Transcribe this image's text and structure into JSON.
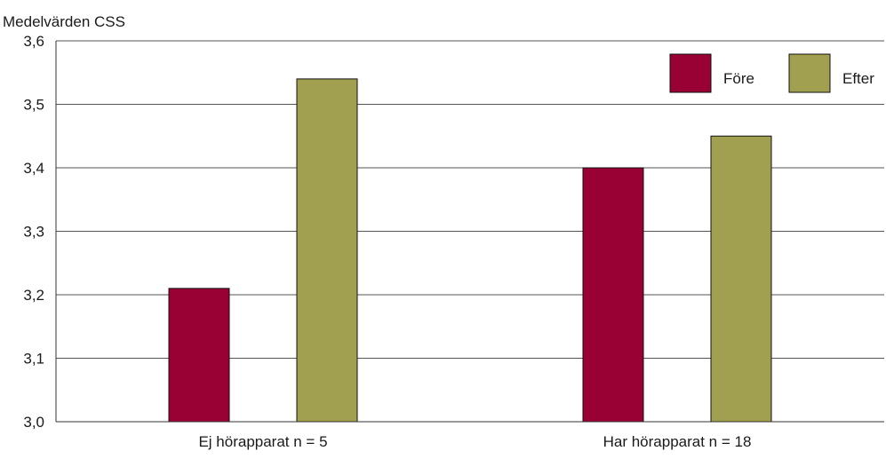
{
  "chart_data": {
    "type": "bar",
    "ylabel": "Medelvärden CSS",
    "categories": [
      "Ej hörapparat n = 5",
      "Har hörapparat n = 18"
    ],
    "series": [
      {
        "name": "Före",
        "values": [
          3.21,
          3.4
        ],
        "color": "#990033"
      },
      {
        "name": "Efter",
        "values": [
          3.54,
          3.45
        ],
        "color": "#a0a050"
      }
    ],
    "ylim": [
      3.0,
      3.6
    ],
    "yticks": [
      {
        "value": 3.0,
        "label": "3,0"
      },
      {
        "value": 3.1,
        "label": "3,1"
      },
      {
        "value": 3.2,
        "label": "3,2"
      },
      {
        "value": 3.3,
        "label": "3,3"
      },
      {
        "value": 3.4,
        "label": "3,4"
      },
      {
        "value": 3.5,
        "label": "3,5"
      },
      {
        "value": 3.6,
        "label": "3,6"
      }
    ],
    "grid": true,
    "legend_position": "top-right"
  }
}
